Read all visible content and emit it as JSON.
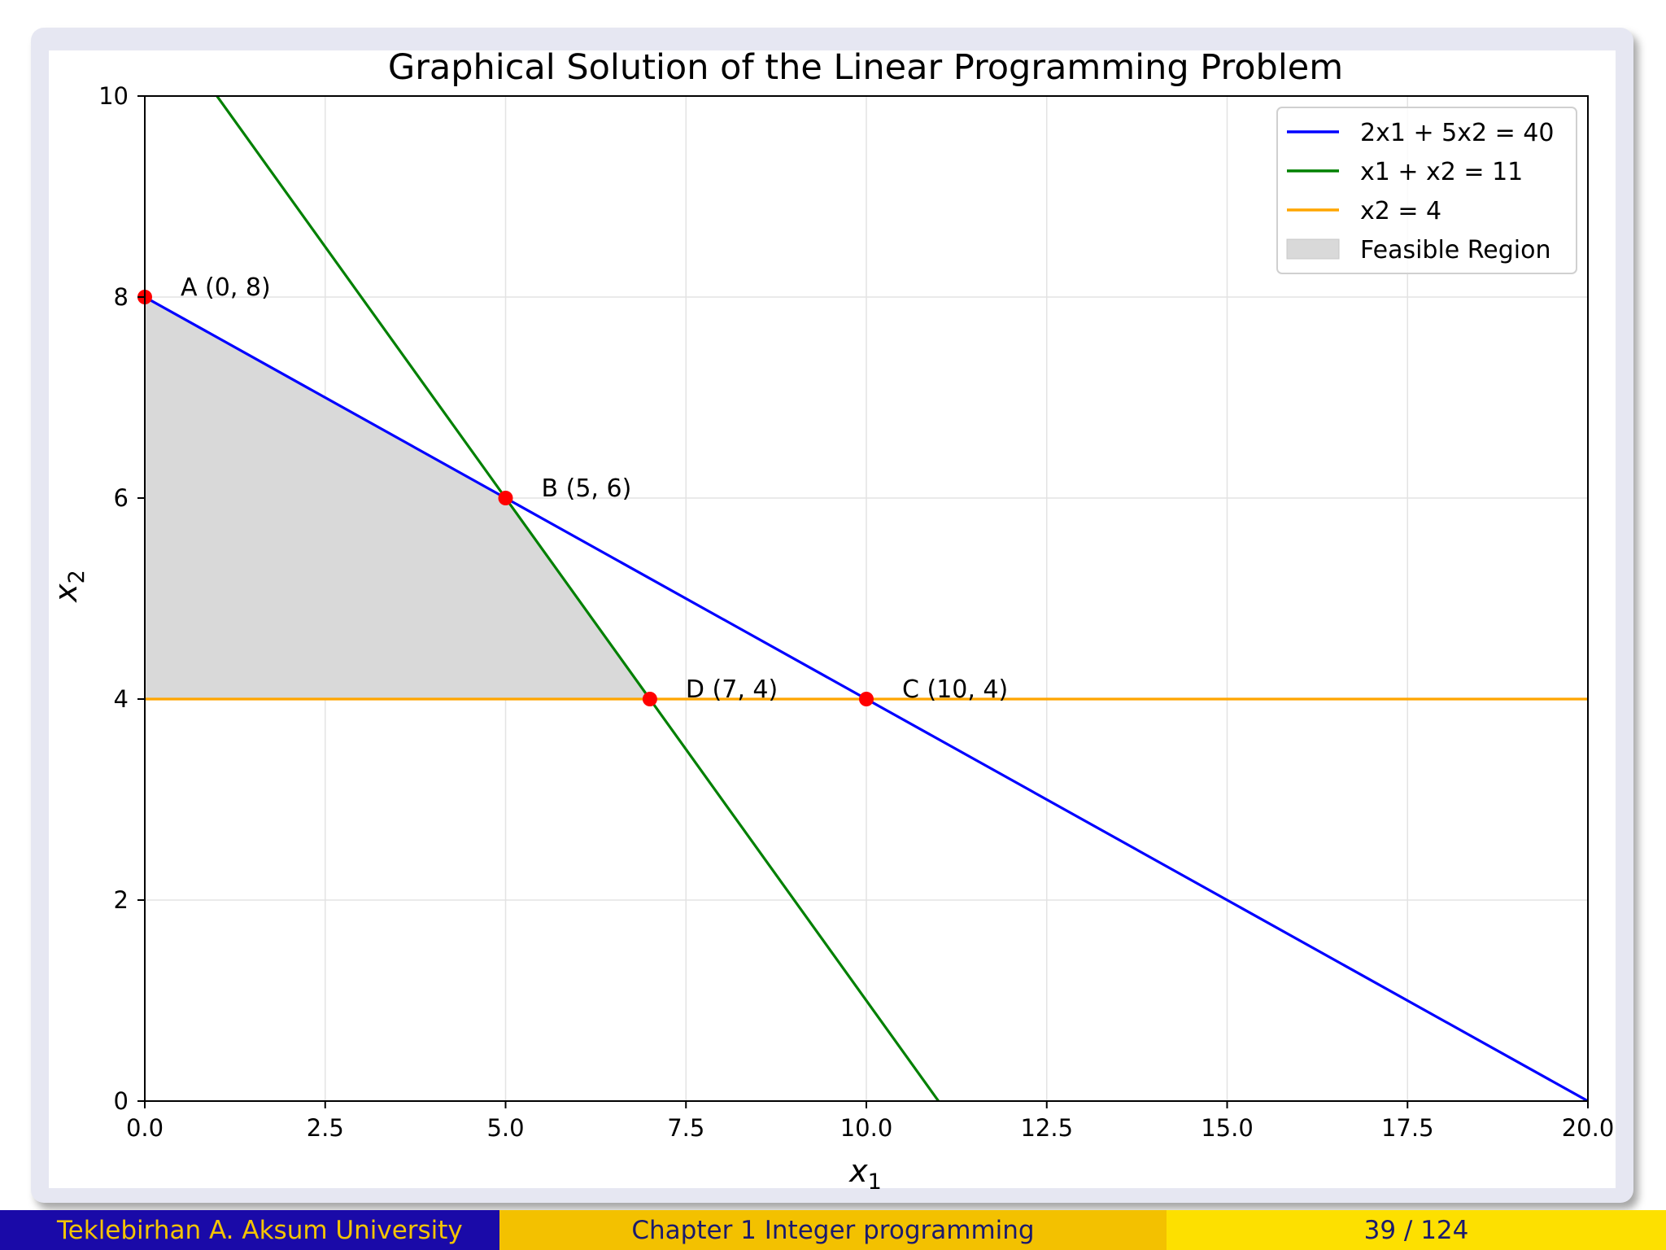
{
  "chart_data": {
    "type": "line",
    "title": "Graphical Solution of the Linear Programming Problem",
    "xlabel": "x",
    "xlabel_sub": "1",
    "ylabel": "x",
    "ylabel_sub": "2",
    "xlim": [
      0,
      20
    ],
    "ylim": [
      0,
      10
    ],
    "x_ticks": [
      0,
      2.5,
      5,
      7.5,
      10,
      12.5,
      15,
      17.5,
      20
    ],
    "x_tick_labels": [
      "0.0",
      "2.5",
      "5.0",
      "7.5",
      "10.0",
      "12.5",
      "15.0",
      "17.5",
      "20.0"
    ],
    "y_ticks": [
      0,
      2,
      4,
      6,
      8,
      10
    ],
    "y_tick_labels": [
      "0",
      "2",
      "4",
      "6",
      "8",
      "10"
    ],
    "grid": true,
    "legend_position": "top-right",
    "series": [
      {
        "name": "2x1 + 5x2 = 40",
        "color": "#0000ff",
        "x": [
          0,
          20
        ],
        "y": [
          8,
          0
        ]
      },
      {
        "name": "x1 + x2 = 11",
        "color": "#008000",
        "x": [
          0,
          11
        ],
        "y": [
          11,
          0
        ]
      },
      {
        "name": "x2 = 4",
        "color": "#ffa500",
        "x": [
          0,
          20
        ],
        "y": [
          4,
          4
        ]
      }
    ],
    "feasible_region": {
      "name": "Feasible Region",
      "color": "#d9d9d9",
      "polygon": [
        [
          0,
          8
        ],
        [
          5,
          6
        ],
        [
          7,
          4
        ],
        [
          0,
          4
        ]
      ]
    },
    "points": [
      {
        "label": "A (0, 8)",
        "x": 0,
        "y": 8
      },
      {
        "label": "B (5, 6)",
        "x": 5,
        "y": 6
      },
      {
        "label": "C (10, 4)",
        "x": 10,
        "y": 4
      },
      {
        "label": "D (7, 4)",
        "x": 7,
        "y": 4
      }
    ],
    "point_color": "#ff0000"
  },
  "footer": {
    "author": "Teklebirhan A. Aksum University",
    "chapter": "Chapter 1 Integer programming",
    "page": "39 / 124"
  }
}
